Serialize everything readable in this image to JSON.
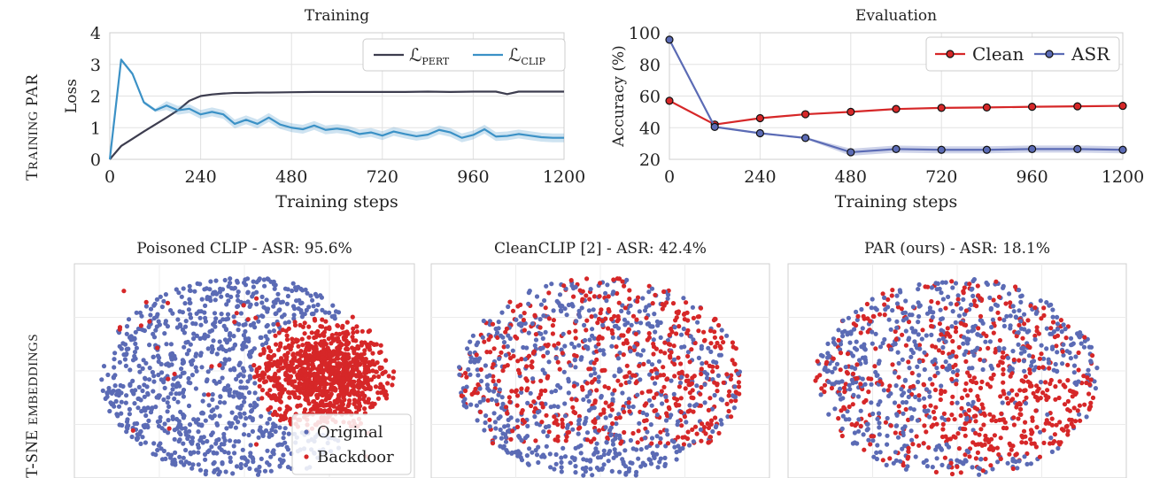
{
  "row_labels": [
    "Training PAR",
    "t-SNE embeddings"
  ],
  "chart_data": [
    {
      "type": "line",
      "title": "Training",
      "xlabel": "Training steps",
      "ylabel": "Loss",
      "xlim": [
        0,
        1200
      ],
      "ylim": [
        0,
        4
      ],
      "xticks": [
        "0",
        "240",
        "480",
        "720",
        "960",
        "1200"
      ],
      "yticks": [
        "0",
        "1",
        "2",
        "3",
        "4"
      ],
      "grid": true,
      "legend": "top-right",
      "series": [
        {
          "name": "L_PERT",
          "label_main": "ℒ",
          "label_sub": "PERT",
          "color": "#3d3d4f",
          "x": [
            0,
            30,
            60,
            90,
            120,
            150,
            180,
            210,
            240,
            270,
            300,
            330,
            360,
            390,
            420,
            480,
            540,
            600,
            660,
            720,
            780,
            840,
            900,
            960,
            1020,
            1050,
            1080,
            1140,
            1200
          ],
          "y": [
            0.0,
            0.42,
            0.65,
            0.88,
            1.1,
            1.32,
            1.55,
            1.85,
            2.0,
            2.05,
            2.08,
            2.1,
            2.1,
            2.11,
            2.11,
            2.12,
            2.13,
            2.13,
            2.13,
            2.13,
            2.13,
            2.14,
            2.13,
            2.14,
            2.14,
            2.06,
            2.14,
            2.14,
            2.14
          ]
        },
        {
          "name": "L_CLIP",
          "label_main": "ℒ",
          "label_sub": "CLIP",
          "color": "#3b91c6",
          "x": [
            0,
            30,
            60,
            90,
            120,
            150,
            180,
            210,
            240,
            270,
            300,
            330,
            360,
            390,
            420,
            450,
            480,
            510,
            540,
            570,
            600,
            630,
            660,
            690,
            720,
            750,
            780,
            810,
            840,
            870,
            900,
            930,
            960,
            990,
            1020,
            1050,
            1080,
            1110,
            1140,
            1170,
            1200
          ],
          "y": [
            0.0,
            3.15,
            2.7,
            1.8,
            1.55,
            1.7,
            1.55,
            1.6,
            1.42,
            1.5,
            1.42,
            1.12,
            1.25,
            1.12,
            1.32,
            1.1,
            1.0,
            0.95,
            1.07,
            0.93,
            0.97,
            0.92,
            0.8,
            0.85,
            0.75,
            0.88,
            0.8,
            0.73,
            0.78,
            0.93,
            0.85,
            0.68,
            0.77,
            0.95,
            0.72,
            0.74,
            0.8,
            0.75,
            0.7,
            0.68,
            0.68
          ]
        }
      ]
    },
    {
      "type": "line",
      "title": "Evaluation",
      "xlabel": "Training steps",
      "ylabel": "Accuracy (%)",
      "xlim": [
        0,
        1200
      ],
      "ylim": [
        20,
        100
      ],
      "xticks": [
        "0",
        "240",
        "480",
        "720",
        "960",
        "1200"
      ],
      "yticks": [
        "20",
        "40",
        "60",
        "80",
        "100"
      ],
      "grid": true,
      "legend": "top-right",
      "series": [
        {
          "name": "Clean",
          "color": "#d62728",
          "x": [
            0,
            120,
            240,
            360,
            480,
            600,
            720,
            840,
            960,
            1080,
            1200
          ],
          "y": [
            57,
            42,
            46,
            48.5,
            50,
            51.8,
            52.5,
            52.8,
            53.2,
            53.5,
            53.8
          ]
        },
        {
          "name": "ASR",
          "color": "#5b6bb5",
          "x": [
            0,
            120,
            240,
            360,
            480,
            600,
            720,
            840,
            960,
            1080,
            1200
          ],
          "y": [
            95.6,
            40.5,
            36.5,
            33.5,
            24.5,
            26.5,
            26,
            26,
            26.5,
            26.5,
            26
          ]
        }
      ]
    },
    {
      "type": "scatter",
      "title": "Poisoned CLIP - ASR: 95.6%",
      "legend": "bottom-right",
      "series_names": [
        "Original",
        "Backdoor"
      ],
      "colors": [
        "#5b6bb5",
        "#d62728"
      ]
    },
    {
      "type": "scatter",
      "title": "CleanCLIP [2] - ASR: 42.4%",
      "colors": [
        "#5b6bb5",
        "#d62728"
      ]
    },
    {
      "type": "scatter",
      "title": "PAR (ours) - ASR: 18.1%",
      "colors": [
        "#5b6bb5",
        "#d62728"
      ]
    }
  ]
}
